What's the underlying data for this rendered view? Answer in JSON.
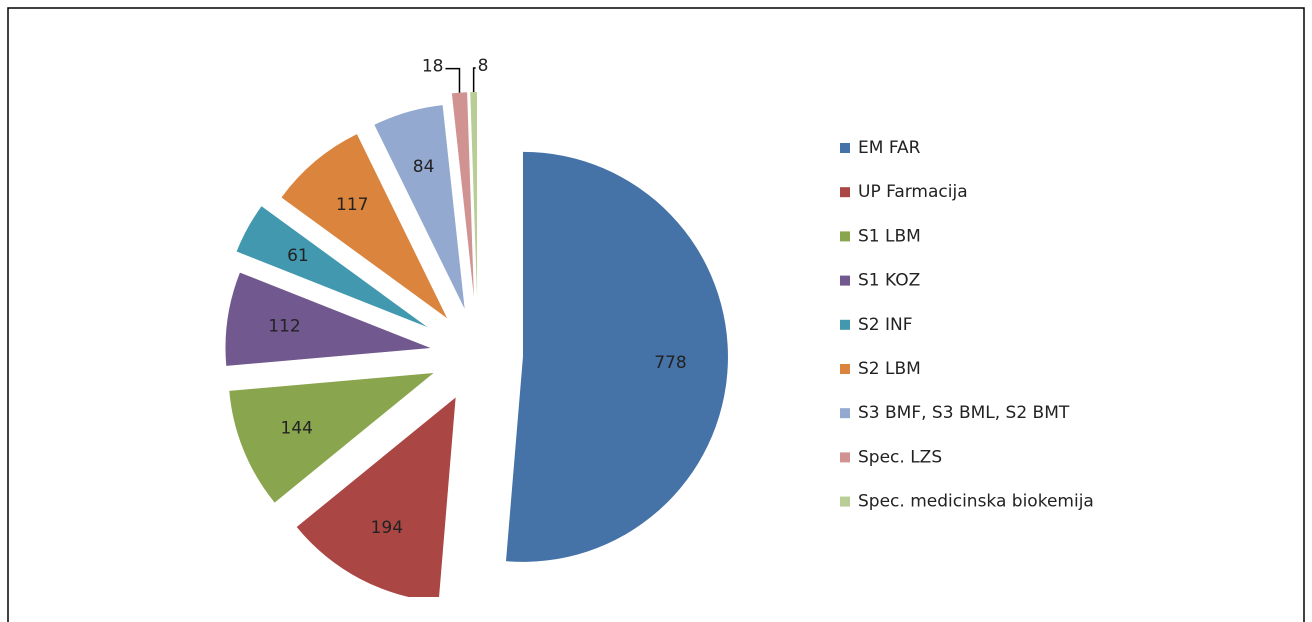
{
  "chart_data": {
    "type": "pie",
    "categories": [
      "EM FAR",
      "UP Farmacija",
      "S1 LBM",
      "S1 KOZ",
      "S2 INF",
      "S2 LBM",
      "S3 BMF, S3 BML, S2 BMT",
      "Spec. LZS",
      "Spec. medicinska biokemija"
    ],
    "values": [
      778,
      194,
      144,
      112,
      61,
      117,
      84,
      18,
      8
    ],
    "colors": [
      "#4572a7",
      "#aa4643",
      "#89a54e",
      "#71588f",
      "#4198af",
      "#db843d",
      "#93a9cf",
      "#d19392",
      "#b9cd96"
    ],
    "legend": "right"
  }
}
